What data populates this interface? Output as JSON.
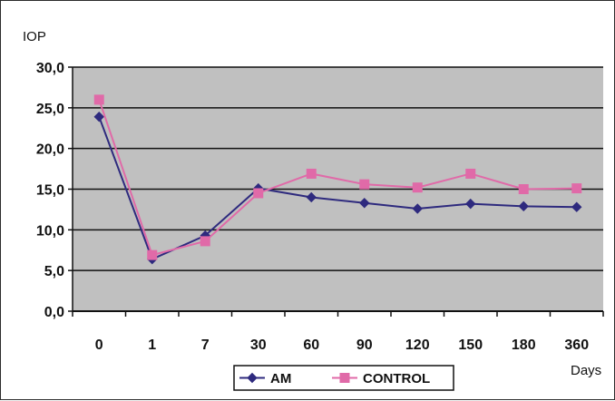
{
  "chart_data": {
    "type": "line",
    "ylabel": "IOP",
    "xlabel": "Days",
    "categories": [
      "0",
      "1",
      "7",
      "30",
      "60",
      "90",
      "120",
      "150",
      "180",
      "360"
    ],
    "y_tick_labels": [
      "0,0",
      "5,0",
      "10,0",
      "15,0",
      "20,0",
      "25,0",
      "30,0"
    ],
    "ylim": [
      0,
      30
    ],
    "grid": "horizontal",
    "plot_background": "#c0c0c0",
    "legend_position": "bottom",
    "series": [
      {
        "name": "AM",
        "color": "#2e2a7e",
        "marker": "diamond",
        "values": [
          23.9,
          6.4,
          9.3,
          15.1,
          14.0,
          13.3,
          12.6,
          13.2,
          12.9,
          12.8
        ]
      },
      {
        "name": "CONTROL",
        "color": "#e06aa8",
        "marker": "square",
        "values": [
          26.0,
          6.9,
          8.6,
          14.5,
          16.9,
          15.6,
          15.2,
          16.9,
          15.0,
          15.1
        ]
      }
    ]
  }
}
